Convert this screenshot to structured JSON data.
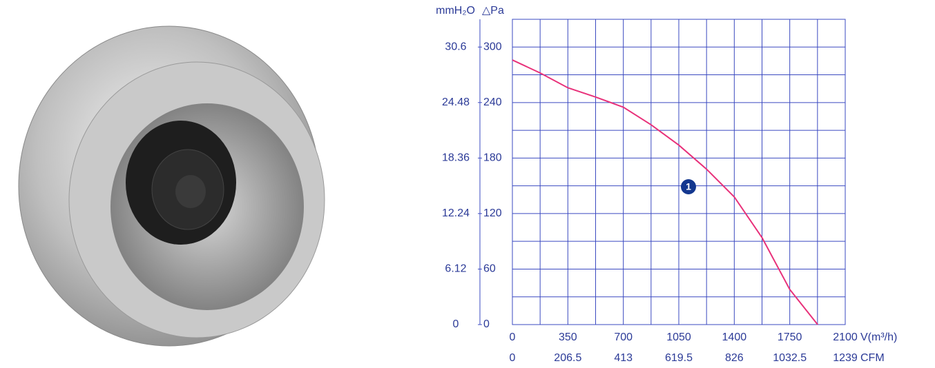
{
  "chart_data": {
    "type": "line",
    "x_label": "V(m³/h)",
    "x2_label": "CFM",
    "y_label": "△Pa",
    "y2_label": "mmH₂O",
    "xlim": [
      0,
      2100
    ],
    "xticks": [
      0,
      350,
      700,
      1050,
      1400,
      1750,
      2100
    ],
    "x2lim": [
      0,
      1239
    ],
    "x2ticks": [
      0,
      206.5,
      413,
      619.5,
      826,
      1032.5,
      1239
    ],
    "ylim": [
      0,
      330
    ],
    "yticks": [
      0,
      60,
      120,
      180,
      240,
      300
    ],
    "y2lim": [
      0,
      33.66
    ],
    "y2ticks": [
      0,
      6.12,
      12.24,
      18.36,
      24.48,
      30.6
    ],
    "grid": true,
    "grid_color": "#3a49c0",
    "x": [
      0,
      175,
      350,
      525,
      700,
      875,
      1050,
      1225,
      1400,
      1575,
      1750,
      1926
    ],
    "series": [
      {
        "name": "1",
        "color": "#e8317a",
        "values": [
          286,
          272,
          256,
          246,
          235,
          216,
          194,
          168,
          138,
          94,
          38,
          0
        ]
      }
    ],
    "label_at": [
      1111,
      149
    ]
  }
}
